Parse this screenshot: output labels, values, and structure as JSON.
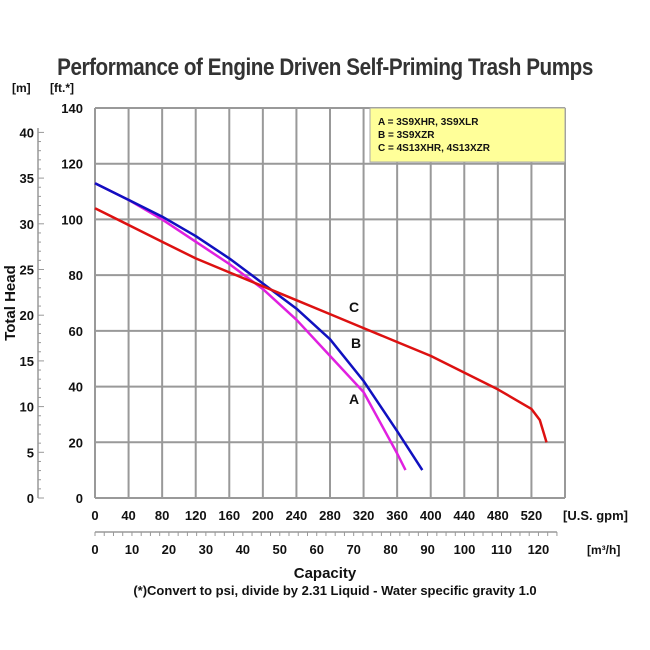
{
  "chart_data": {
    "type": "line",
    "title": "Performance of Engine Driven Self-Priming Trash Pumps",
    "ylabel": "Total Head",
    "y_unit_left": "[m]",
    "y_unit_right": "[ft.*]",
    "xlabel": "Capacity",
    "x_unit_top": "[U.S. gpm]",
    "x_unit_bottom": "[m³/h]",
    "xlim": [
      0,
      560
    ],
    "ylim": [
      0,
      140
    ],
    "x_ticks": [
      0,
      40,
      80,
      120,
      160,
      200,
      240,
      280,
      320,
      360,
      400,
      440,
      480,
      520
    ],
    "y_ticks_ft": [
      0,
      20,
      40,
      60,
      80,
      100,
      120,
      140
    ],
    "y_ticks_m": [
      0,
      5,
      10,
      15,
      20,
      25,
      30,
      35,
      40
    ],
    "x_ticks_m3h": [
      0,
      10,
      20,
      30,
      40,
      50,
      60,
      70,
      80,
      90,
      100,
      110,
      120
    ],
    "grid": true,
    "legend_position": "top-right",
    "legend": [
      "A = 3S9XHR, 3S9XLR",
      "B = 3S9XZR",
      "C = 4S13XHR, 4S13XZR"
    ],
    "series": [
      {
        "name": "A",
        "color": "#e020e0",
        "x": [
          0,
          40,
          80,
          120,
          160,
          200,
          240,
          280,
          320,
          340,
          360,
          370
        ],
        "y": [
          113,
          107,
          100,
          92,
          84,
          75,
          64,
          51,
          38,
          27,
          16,
          10
        ]
      },
      {
        "name": "B",
        "color": "#1010c0",
        "x": [
          0,
          40,
          80,
          120,
          160,
          200,
          240,
          280,
          320,
          360,
          390
        ],
        "y": [
          113,
          107,
          101,
          94,
          86,
          77,
          68,
          57,
          42,
          24,
          10
        ]
      },
      {
        "name": "C",
        "color": "#dd1111",
        "x": [
          0,
          40,
          80,
          120,
          160,
          200,
          240,
          280,
          320,
          360,
          400,
          440,
          480,
          520,
          530,
          535,
          538
        ],
        "y": [
          104,
          98,
          92,
          86,
          81,
          76,
          71,
          66,
          61,
          56,
          51,
          45,
          39,
          32,
          28,
          23,
          20
        ]
      }
    ],
    "footnote": "(*)Convert to psi, divide by 2.31     Liquid - Water specific gravity 1.0"
  }
}
